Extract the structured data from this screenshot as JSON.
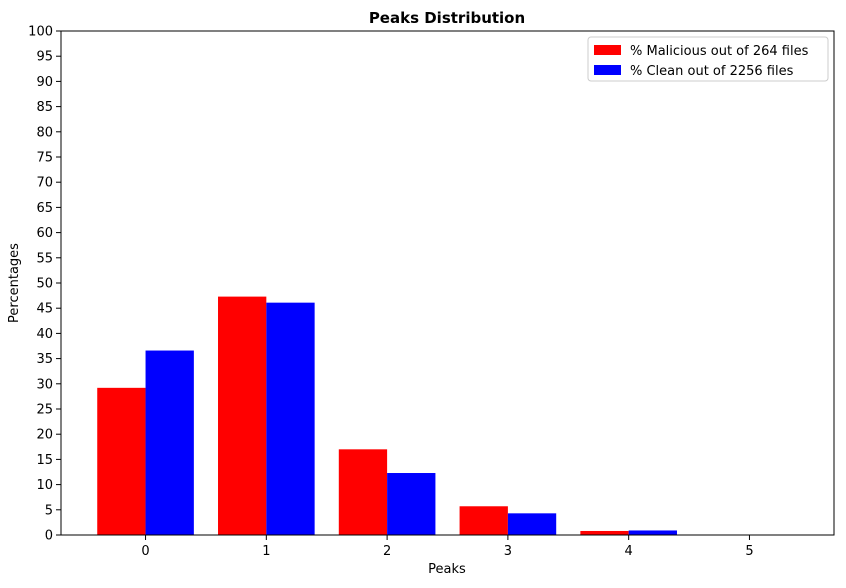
{
  "chart_data": {
    "type": "bar",
    "title": "Peaks Distribution",
    "xlabel": "Peaks",
    "ylabel": "Percentages",
    "categories": [
      "0",
      "1",
      "2",
      "3",
      "4",
      "5"
    ],
    "series": [
      {
        "name": "% Malicious out of 264 files",
        "color": "#ff0000",
        "values": [
          29.2,
          47.3,
          17.0,
          5.7,
          0.8,
          0.0
        ]
      },
      {
        "name": "% Clean out of 2256 files",
        "color": "#0000ff",
        "values": [
          36.6,
          46.1,
          12.3,
          4.3,
          0.9,
          0.0
        ]
      }
    ],
    "ylim": [
      0,
      100
    ],
    "yticks": [
      0,
      5,
      10,
      15,
      20,
      25,
      30,
      35,
      40,
      45,
      50,
      55,
      60,
      65,
      70,
      75,
      80,
      85,
      90,
      95,
      100
    ],
    "grid": false,
    "legend_position": "top-right"
  }
}
